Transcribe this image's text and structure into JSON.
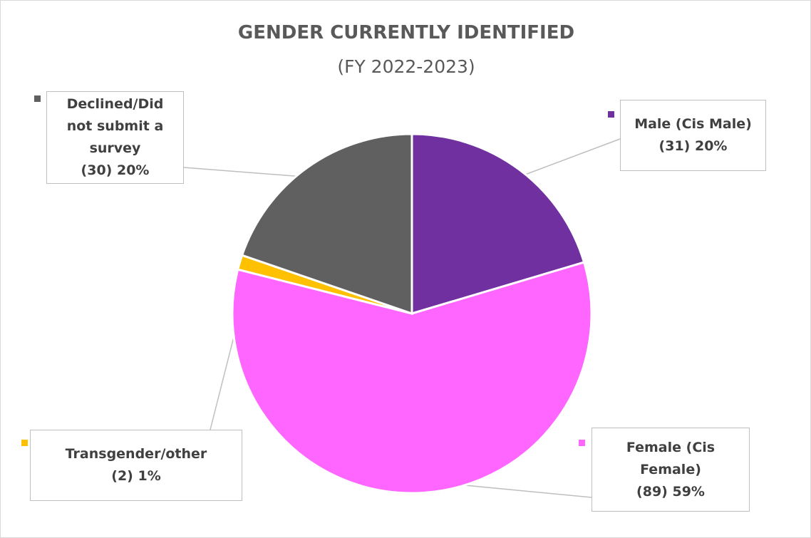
{
  "chart_data": {
    "type": "pie",
    "title": "GENDER CURRENTLY IDENTIFIED",
    "subtitle": "(FY 2022-2023)",
    "categories": [
      "Male (Cis Male)",
      "Female (Cis Female)",
      "Transgender/other",
      "Declined/Did not submit a survey"
    ],
    "values": [
      31,
      89,
      2,
      30
    ],
    "value_labels": [
      "(31) 20%",
      "(89) 59%",
      "(2) 1%",
      "(30) 20%"
    ],
    "colors": [
      "#7030a0",
      "#ff66ff",
      "#ffc000",
      "#606060"
    ]
  }
}
